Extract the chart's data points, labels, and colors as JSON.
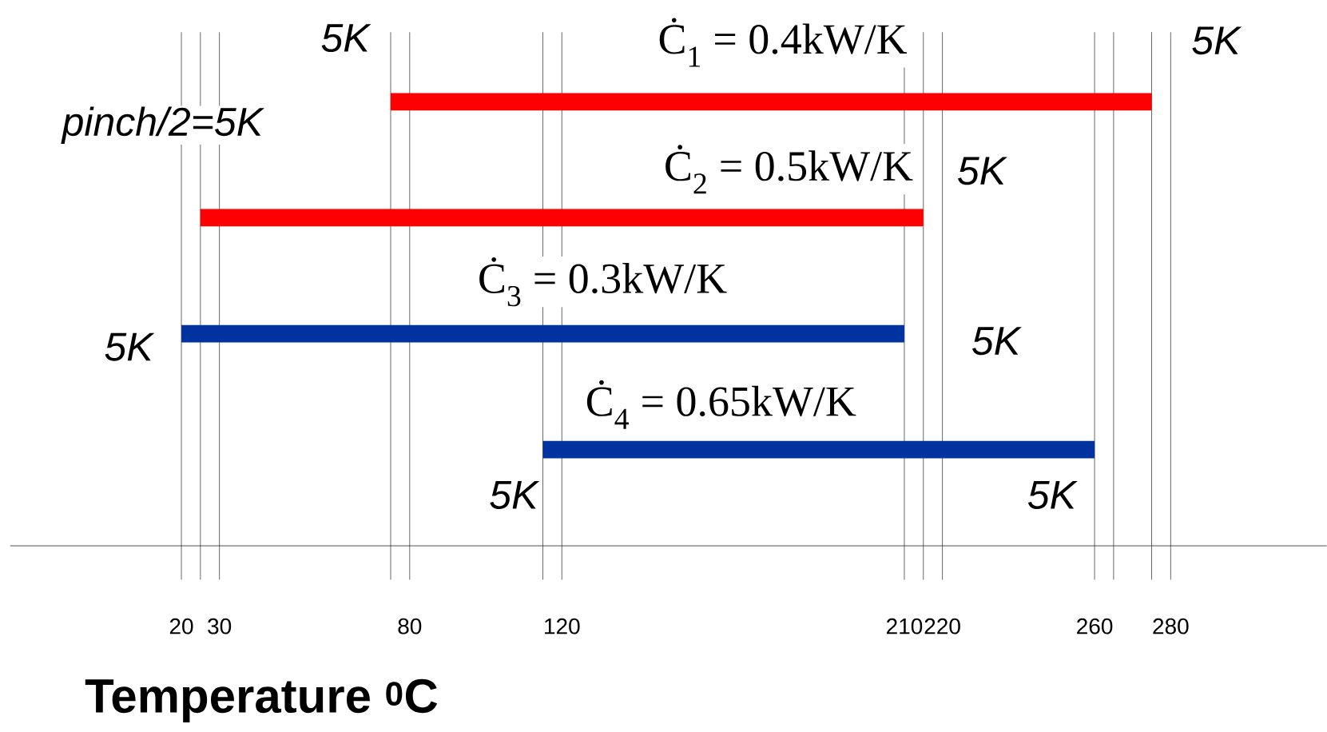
{
  "chart_data": {
    "type": "bar",
    "orientation": "horizontal",
    "tick_labels": "x",
    "grid": "x",
    "categories": [
      null,
      null,
      null,
      null
    ],
    "base": [
      75,
      25,
      20,
      115
    ],
    "values": [
      200,
      190,
      190,
      145
    ],
    "colors": [
      "#ff0000",
      "#ff0000",
      "#0033a0",
      "#0033a0"
    ],
    "xlim": [
      -25,
      321
    ],
    "xticks": [
      20,
      {
        "value": 25,
        "label": null
      },
      30,
      {
        "value": 75,
        "label": null
      },
      80,
      {
        "value": 115,
        "label": null
      },
      120,
      210,
      {
        "value": 215,
        "label": null
      },
      220,
      260,
      {
        "value": 265,
        "label": null
      },
      {
        "value": 275,
        "label": null
      },
      280
    ],
    "xlabel": "Temperature $^{0}$C",
    "annotations": [
      "5K",
      "Ċ$_{1}$ = 0.4kW/K",
      "5K",
      "pinch/2=5K",
      "Ċ$_{2}$ = 0.5kW/K",
      "5K",
      "Ċ$_{3}$ = 0.3kW/K",
      "5K",
      "5K",
      "Ċ$_{4}$ = 0.65kW/K",
      "5K",
      "5K"
    ]
  }
}
